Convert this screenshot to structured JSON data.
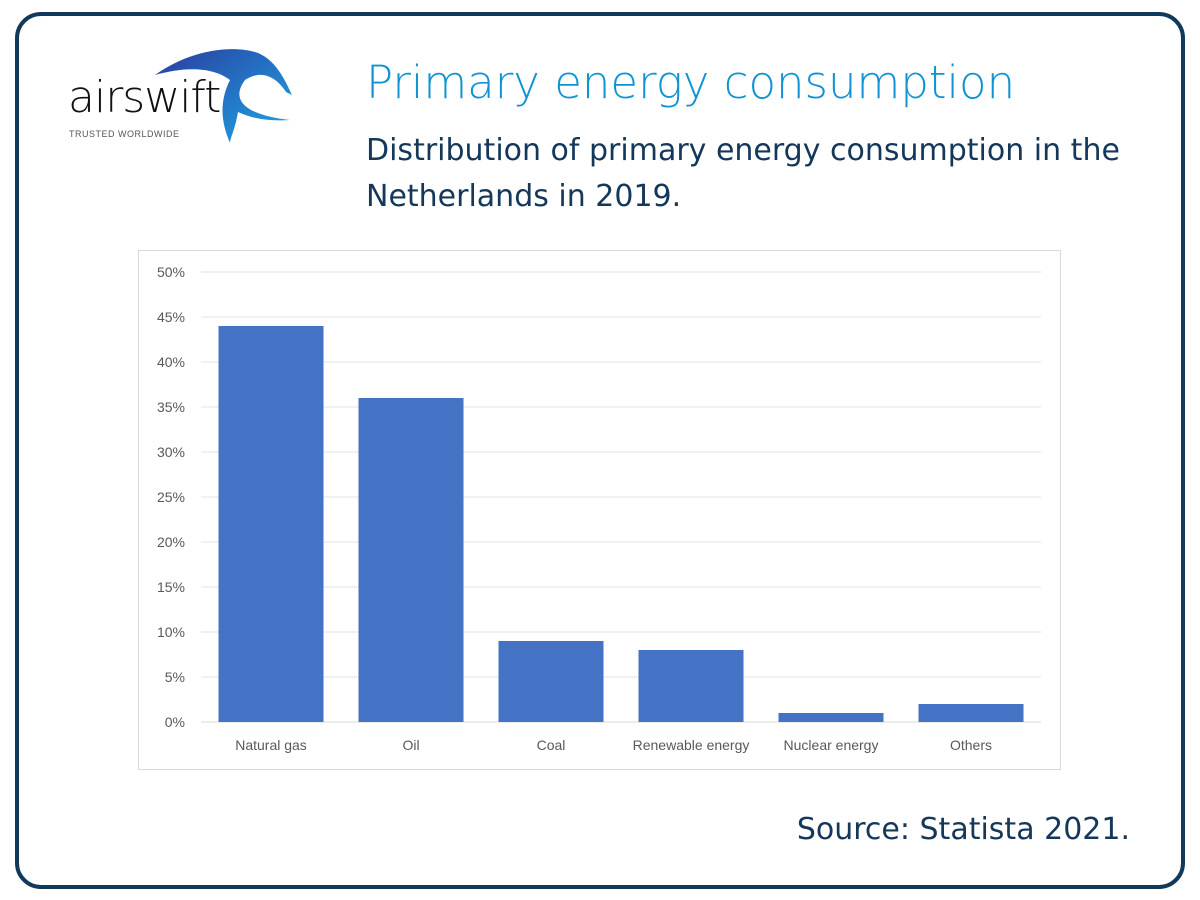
{
  "logo": {
    "word": "airswift",
    "tagline": "TRUSTED WORLDWIDE"
  },
  "header": {
    "title": "Primary energy consumption",
    "subtitle": "Distribution of primary energy consumption in the Netherlands in 2019."
  },
  "source": "Source: Statista 2021.",
  "colors": {
    "bar": "#4472c4",
    "title": "#0f93d2",
    "text": "#14375a",
    "frame": "#12385a"
  },
  "chart_data": {
    "type": "bar",
    "categories": [
      "Natural gas",
      "Oil",
      "Coal",
      "Renewable energy",
      "Nuclear energy",
      "Others"
    ],
    "values": [
      44,
      36,
      9,
      8,
      1,
      2
    ],
    "unit": "%",
    "ylim": [
      0,
      50
    ],
    "yticks": [
      "0%",
      "5%",
      "10%",
      "15%",
      "20%",
      "25%",
      "30%",
      "35%",
      "40%",
      "45%",
      "50%"
    ],
    "grid": true,
    "legend": "none"
  }
}
